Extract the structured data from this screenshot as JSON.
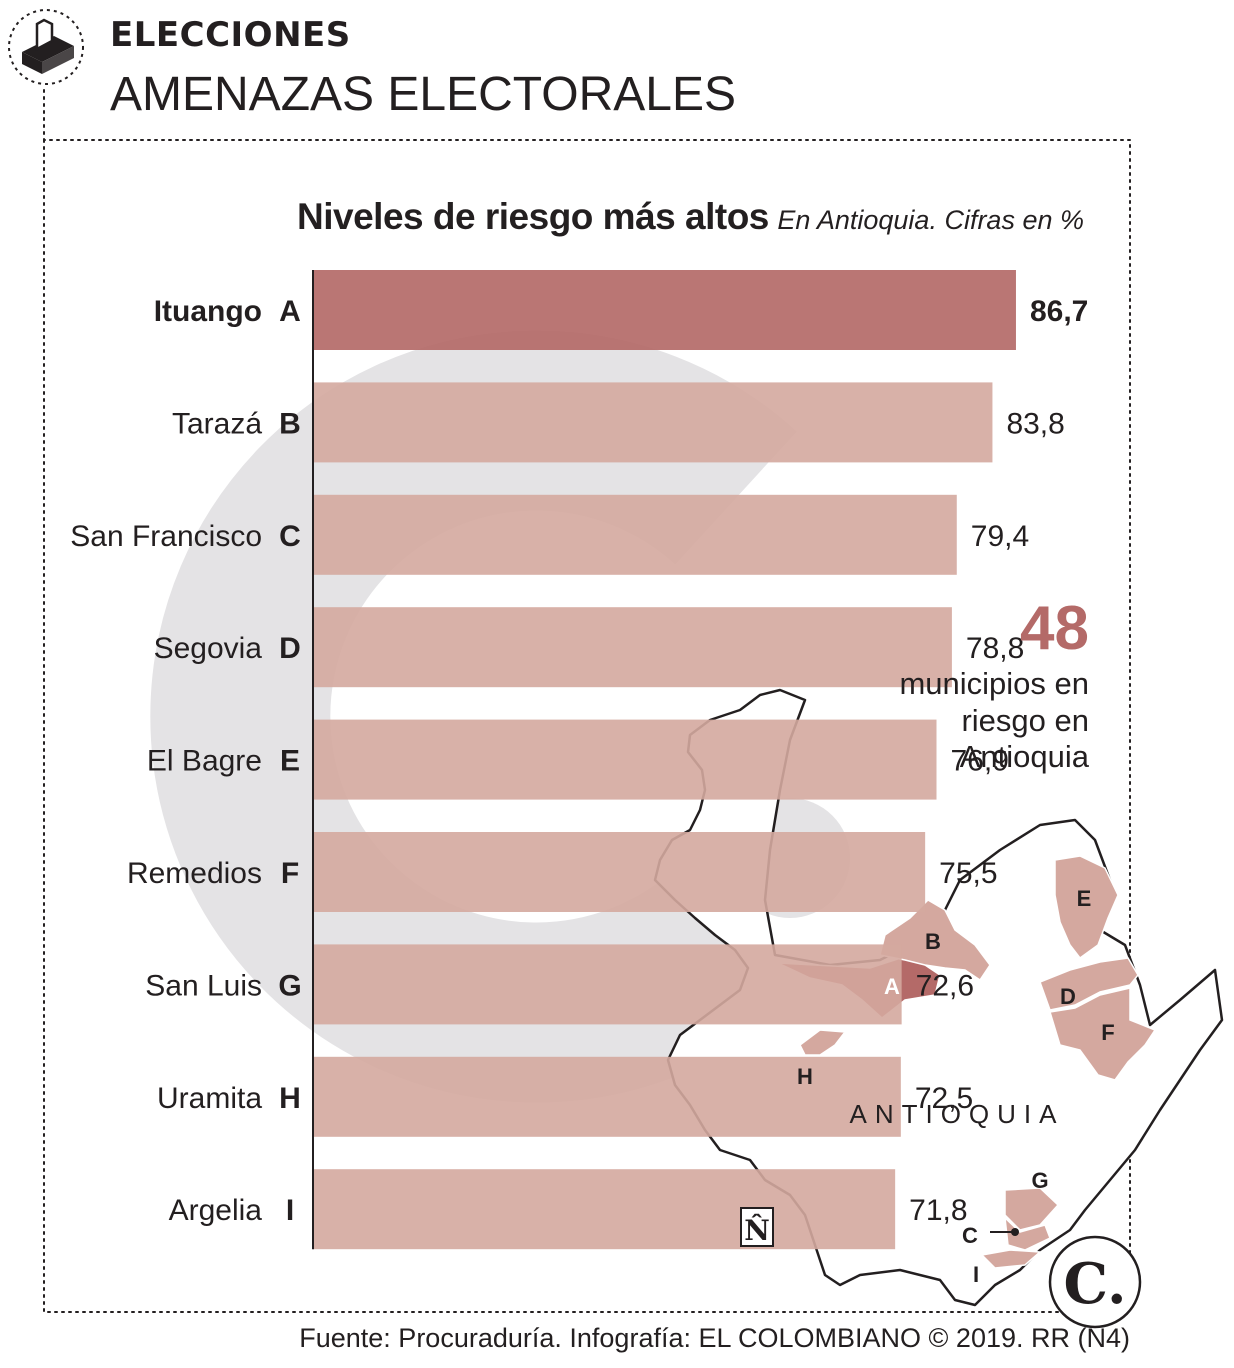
{
  "header": {
    "section": "ELECCIONES",
    "title": "AMENAZAS ELECTORALES"
  },
  "chart_heading": {
    "main": "Niveles de riesgo más altos",
    "sub": "En Antioquia. Cifras en %"
  },
  "chart_data": {
    "type": "bar",
    "orientation": "horizontal",
    "categories": [
      "Ituango",
      "Tarazá",
      "San Francisco",
      "Segovia",
      "El Bagre",
      "Remedios",
      "San Luis",
      "Uramita",
      "Argelia"
    ],
    "keys": [
      "A",
      "B",
      "C",
      "D",
      "E",
      "F",
      "G",
      "H",
      "I"
    ],
    "values": [
      86.7,
      83.8,
      79.4,
      78.8,
      76.9,
      75.5,
      72.6,
      72.5,
      71.8
    ],
    "value_labels": [
      "86,7",
      "83,8",
      "79,4",
      "78,8",
      "76,9",
      "75,5",
      "72,6",
      "72,5",
      "71,8"
    ],
    "highlight": "Ituango",
    "title": "Niveles de riesgo más altos",
    "subtitle": "En Antioquia. Cifras en %",
    "xlabel": "",
    "ylabel": "",
    "grid": false,
    "colors": {
      "highlight": "#b46a68",
      "bar": "#d4a89f",
      "text": "#231f20"
    }
  },
  "callout": {
    "number": "48",
    "caption": "municipios en riesgo en Antioquia"
  },
  "map": {
    "region_label": "ANTIOQUIA",
    "north_symbol": "N̂",
    "colors": {
      "outline": "#231f20",
      "fill": "#ffffff",
      "highlight": "#b46a68",
      "marked": "#d4a89f"
    }
  },
  "logo": "C.",
  "footer": "Fuente: Procuraduría. Infografía: EL COLOMBIANO © 2019. RR (N4)",
  "watermark_color": "#e4e3e5"
}
